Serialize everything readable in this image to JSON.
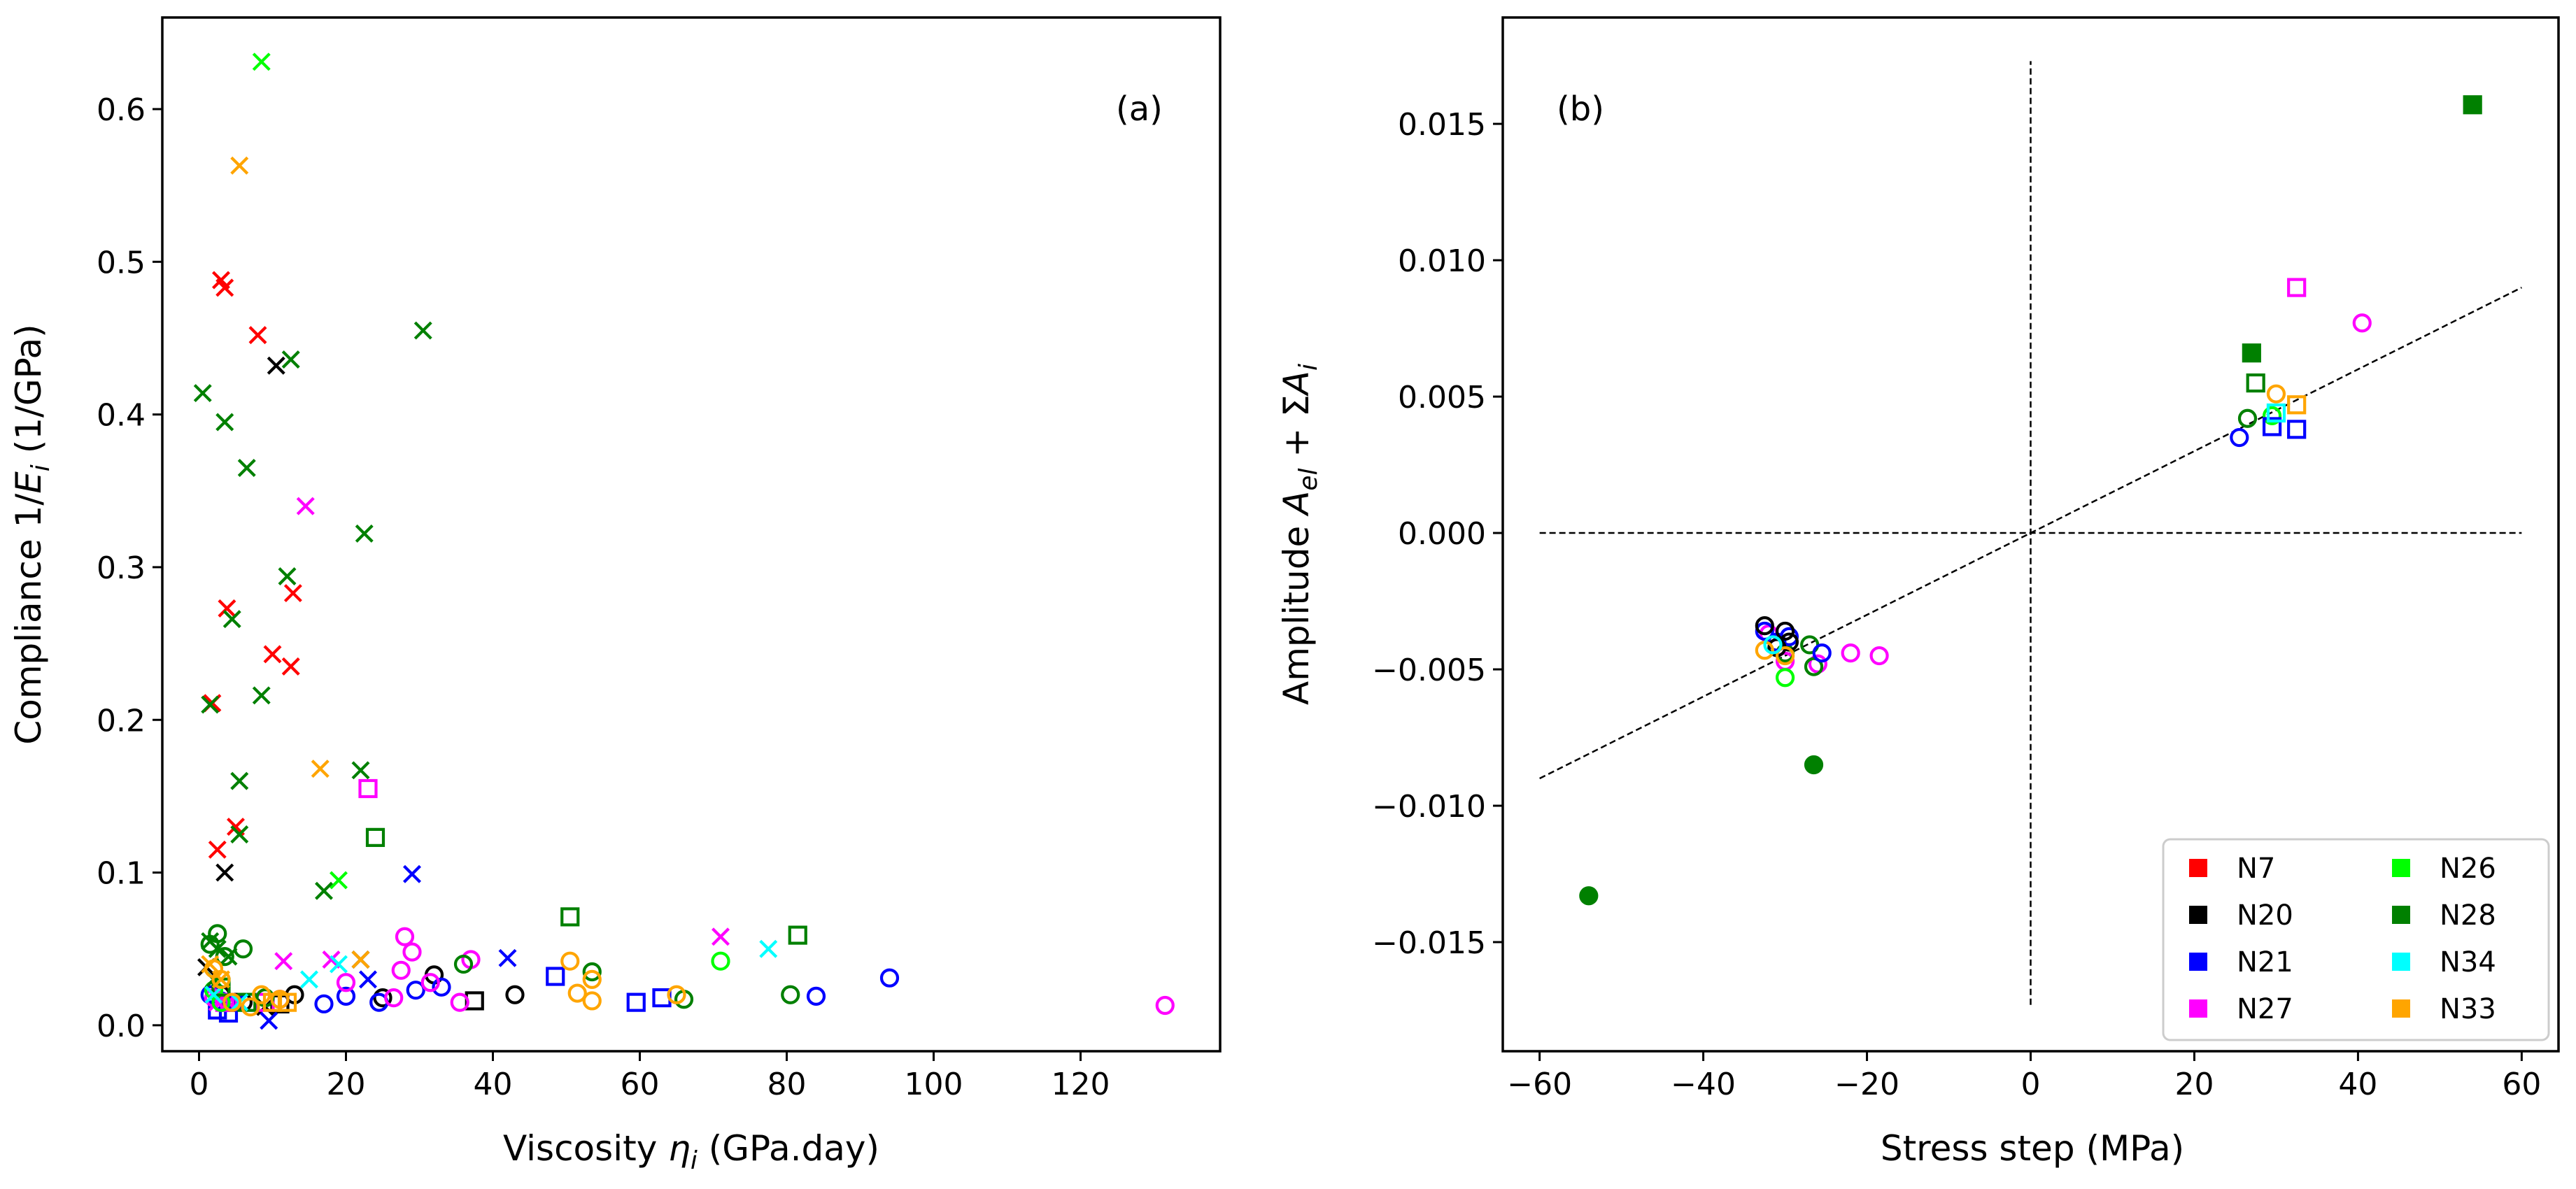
{
  "colors": {
    "N7": "#ff0000",
    "N20": "#000000",
    "N21": "#0000ff",
    "N27": "#ff00ff",
    "N26": "#00ff00",
    "N28": "#008000",
    "N34": "#00ffff",
    "N33": "#ffa500"
  },
  "chart_data": [
    {
      "type": "scatter",
      "panel_label": "(a)",
      "xlabel": "Viscosity ",
      "xlabel_symbol": "η",
      "xlabel_sub": "i",
      "xlabel_unit": " (GPa.day)",
      "ylabel": "Compliance 1/",
      "ylabel_symbol": "E",
      "ylabel_sub": "i",
      "ylabel_unit": " (1/GPa)",
      "xlim": [
        -5,
        139
      ],
      "ylim": [
        -0.017,
        0.66
      ],
      "xticks": [
        0,
        20,
        40,
        60,
        80,
        100,
        120
      ],
      "xtick_labels": [
        "0",
        "20",
        "40",
        "60",
        "80",
        "100",
        "120"
      ],
      "yticks": [
        0.0,
        0.1,
        0.2,
        0.3,
        0.4,
        0.5,
        0.6
      ],
      "ytick_labels": [
        "0.0",
        "0.1",
        "0.2",
        "0.3",
        "0.4",
        "0.5",
        "0.6"
      ],
      "series": [
        {
          "name": "N7",
          "marker": "x",
          "points": [
            [
              3,
              0.488
            ],
            [
              3.5,
              0.483
            ],
            [
              8,
              0.452
            ],
            [
              3.8,
              0.273
            ],
            [
              12.8,
              0.283
            ],
            [
              10,
              0.243
            ],
            [
              12.5,
              0.235
            ],
            [
              1.8,
              0.211
            ],
            [
              5,
              0.13
            ],
            [
              2.5,
              0.115
            ]
          ]
        },
        {
          "name": "N20",
          "marker": "x",
          "points": [
            [
              10.5,
              0.432
            ],
            [
              3.5,
              0.1
            ],
            [
              1,
              0.038
            ],
            [
              22,
              0.043
            ],
            [
              9,
              0.012
            ]
          ]
        },
        {
          "name": "N20",
          "marker": "s",
          "points": [
            [
              37.5,
              0.016
            ],
            [
              4,
              0.015
            ],
            [
              11,
              0.014
            ]
          ]
        },
        {
          "name": "N20",
          "marker": "o",
          "points": [
            [
              32,
              0.033
            ],
            [
              43,
              0.02
            ],
            [
              13,
              0.02
            ],
            [
              6,
              0.015
            ],
            [
              3,
              0.02
            ],
            [
              25,
              0.018
            ]
          ]
        },
        {
          "name": "N21",
          "marker": "x",
          "points": [
            [
              29,
              0.099
            ],
            [
              42,
              0.044
            ],
            [
              23,
              0.03
            ],
            [
              9.5,
              0.003
            ],
            [
              5,
              0.015
            ]
          ]
        },
        {
          "name": "N21",
          "marker": "s",
          "points": [
            [
              48.5,
              0.032
            ],
            [
              59.5,
              0.015
            ],
            [
              63,
              0.018
            ],
            [
              4,
              0.008
            ],
            [
              2.5,
              0.01
            ]
          ]
        },
        {
          "name": "N21",
          "marker": "o",
          "points": [
            [
              94,
              0.031
            ],
            [
              84,
              0.019
            ],
            [
              33,
              0.025
            ],
            [
              29.5,
              0.023
            ],
            [
              24.5,
              0.015
            ],
            [
              20,
              0.019
            ],
            [
              17,
              0.014
            ],
            [
              3,
              0.016
            ],
            [
              1.5,
              0.02
            ]
          ]
        },
        {
          "name": "N27",
          "marker": "x",
          "points": [
            [
              14.5,
              0.34
            ],
            [
              71,
              0.058
            ],
            [
              11.5,
              0.042
            ],
            [
              18,
              0.043
            ],
            [
              2.5,
              0.015
            ],
            [
              4,
              0.015
            ]
          ]
        },
        {
          "name": "N27",
          "marker": "s",
          "points": [
            [
              23,
              0.155
            ],
            [
              3.5,
              0.015
            ],
            [
              9,
              0.015
            ]
          ]
        },
        {
          "name": "N27",
          "marker": "o",
          "points": [
            [
              131.5,
              0.013
            ],
            [
              28,
              0.058
            ],
            [
              29,
              0.048
            ],
            [
              27.5,
              0.036
            ],
            [
              37,
              0.043
            ],
            [
              35.5,
              0.015
            ],
            [
              26.5,
              0.018
            ],
            [
              31.5,
              0.028
            ],
            [
              20,
              0.028
            ],
            [
              4,
              0.015
            ],
            [
              2,
              0.018
            ],
            [
              11,
              0.017
            ]
          ]
        },
        {
          "name": "N26",
          "marker": "x",
          "points": [
            [
              8.5,
              0.631
            ],
            [
              19,
              0.095
            ]
          ]
        },
        {
          "name": "N26",
          "marker": "o",
          "points": [
            [
              71,
              0.042
            ],
            [
              2,
              0.023
            ],
            [
              3,
              0.015
            ]
          ]
        },
        {
          "name": "N28",
          "marker": "x",
          "points": [
            [
              30.5,
              0.455
            ],
            [
              12.5,
              0.436
            ],
            [
              0.5,
              0.414
            ],
            [
              3.5,
              0.395
            ],
            [
              6.5,
              0.365
            ],
            [
              22.5,
              0.322
            ],
            [
              12,
              0.294
            ],
            [
              4.5,
              0.266
            ],
            [
              8.5,
              0.216
            ],
            [
              1.5,
              0.21
            ],
            [
              22,
              0.167
            ],
            [
              5.5,
              0.16
            ],
            [
              5.5,
              0.125
            ],
            [
              17,
              0.088
            ],
            [
              1.5,
              0.055
            ],
            [
              2.5,
              0.05
            ],
            [
              4,
              0.045
            ],
            [
              2,
              0.03
            ]
          ]
        },
        {
          "name": "N28",
          "marker": "s",
          "points": [
            [
              24,
              0.123
            ],
            [
              50.5,
              0.071
            ],
            [
              81.5,
              0.059
            ],
            [
              3,
              0.025
            ],
            [
              6.5,
              0.015
            ]
          ]
        },
        {
          "name": "N28",
          "marker": "o",
          "points": [
            [
              2.5,
              0.06
            ],
            [
              6,
              0.05
            ],
            [
              36,
              0.04
            ],
            [
              53.5,
              0.035
            ],
            [
              80.5,
              0.02
            ],
            [
              66,
              0.017
            ],
            [
              1.5,
              0.053
            ],
            [
              3.5,
              0.045
            ],
            [
              9,
              0.018
            ]
          ]
        },
        {
          "name": "N34",
          "marker": "x",
          "points": [
            [
              77.5,
              0.05
            ],
            [
              15,
              0.03
            ],
            [
              19,
              0.04
            ],
            [
              2,
              0.02
            ],
            [
              5.5,
              0.015
            ]
          ]
        },
        {
          "name": "N33",
          "marker": "x",
          "points": [
            [
              5.5,
              0.563
            ],
            [
              16.5,
              0.168
            ],
            [
              22,
              0.043
            ],
            [
              1.5,
              0.04
            ],
            [
              3,
              0.03
            ]
          ]
        },
        {
          "name": "N33",
          "marker": "s",
          "points": [
            [
              10,
              0.015
            ],
            [
              12,
              0.015
            ]
          ]
        },
        {
          "name": "N33",
          "marker": "o",
          "points": [
            [
              50.5,
              0.042
            ],
            [
              53.5,
              0.03
            ],
            [
              51.5,
              0.021
            ],
            [
              53.5,
              0.016
            ],
            [
              65,
              0.02
            ],
            [
              2,
              0.037
            ],
            [
              3,
              0.03
            ],
            [
              8.5,
              0.02
            ],
            [
              4.5,
              0.015
            ],
            [
              7,
              0.012
            ],
            [
              11,
              0.017
            ]
          ]
        }
      ]
    },
    {
      "type": "scatter",
      "panel_label": "(b)",
      "xlabel": "Stress step (MPa)",
      "ylabel": "Amplitude ",
      "ylabel_symbol": "A",
      "ylabel_sub": "el",
      "ylabel_mid": " + Σ",
      "ylabel_symbol2": "A",
      "ylabel_sub2": "i",
      "xlim": [
        -64.5,
        64.5
      ],
      "ylim": [
        -0.019,
        0.0189
      ],
      "xticks": [
        -60,
        -40,
        -20,
        0,
        20,
        40,
        60
      ],
      "xtick_labels": [
        "−60",
        "−40",
        "−20",
        "0",
        "20",
        "40",
        "60"
      ],
      "yticks": [
        -0.015,
        -0.01,
        -0.005,
        0.0,
        0.005,
        0.01,
        0.015
      ],
      "ytick_labels": [
        "−0.015",
        "−0.010",
        "−0.005",
        "0.000",
        "0.005",
        "0.010",
        "0.015"
      ],
      "fit_line": {
        "x": [
          -60,
          60
        ],
        "y": [
          -0.009,
          0.009
        ]
      },
      "zero_lines": {
        "h_x": [
          -60,
          60
        ],
        "v_y": [
          -0.0173,
          0.0173
        ]
      },
      "series": [
        {
          "name": "N28",
          "marker": "sf",
          "points": [
            [
              54,
              0.0157
            ],
            [
              27,
              0.0066
            ]
          ]
        },
        {
          "name": "N28",
          "marker": "of",
          "points": [
            [
              -54,
              -0.0133
            ],
            [
              -26.5,
              -0.0085
            ]
          ]
        },
        {
          "name": "N27",
          "marker": "s",
          "points": [
            [
              32.5,
              0.009
            ]
          ]
        },
        {
          "name": "N27",
          "marker": "o",
          "points": [
            [
              40.5,
              0.0077
            ],
            [
              -22,
              -0.0044
            ],
            [
              -18.5,
              -0.0045
            ],
            [
              -26,
              -0.0048
            ],
            [
              -30,
              -0.0047
            ],
            [
              -32,
              -0.0037
            ]
          ]
        },
        {
          "name": "N28",
          "marker": "s",
          "points": [
            [
              27.5,
              0.0055
            ]
          ]
        },
        {
          "name": "N28",
          "marker": "o",
          "points": [
            [
              26.5,
              0.0042
            ],
            [
              -27,
              -0.0041
            ],
            [
              -26.5,
              -0.0049
            ],
            [
              -30,
              -0.0044
            ]
          ]
        },
        {
          "name": "N26",
          "marker": "o",
          "points": [
            [
              -30,
              -0.0053
            ],
            [
              29.5,
              0.0043
            ]
          ]
        },
        {
          "name": "N21",
          "marker": "s",
          "points": [
            [
              29.5,
              0.0039
            ],
            [
              32.5,
              0.0038
            ]
          ]
        },
        {
          "name": "N21",
          "marker": "o",
          "points": [
            [
              25.5,
              0.0035
            ],
            [
              -25.5,
              -0.0044
            ],
            [
              -29.5,
              -0.0038
            ],
            [
              -32.5,
              -0.0036
            ],
            [
              -31,
              -0.004
            ]
          ]
        },
        {
          "name": "N20",
          "marker": "o",
          "points": [
            [
              -32.5,
              -0.0034
            ],
            [
              -30,
              -0.0036
            ],
            [
              -29.5,
              -0.004
            ],
            [
              -31,
              -0.0042
            ]
          ]
        },
        {
          "name": "N33",
          "marker": "s",
          "points": [
            [
              32.5,
              0.0047
            ]
          ]
        },
        {
          "name": "N33",
          "marker": "o",
          "points": [
            [
              30,
              0.0051
            ],
            [
              -32.5,
              -0.0043
            ],
            [
              -30,
              -0.0045
            ]
          ]
        },
        {
          "name": "N34",
          "marker": "s",
          "points": [
            [
              30,
              0.0044
            ]
          ]
        },
        {
          "name": "N34",
          "marker": "o",
          "points": [
            [
              -31.5,
              -0.0041
            ]
          ]
        }
      ],
      "legend": {
        "placement": "bottom-right",
        "entries": [
          "N7",
          "N20",
          "N21",
          "N27",
          "N26",
          "N28",
          "N34",
          "N33"
        ]
      }
    }
  ]
}
